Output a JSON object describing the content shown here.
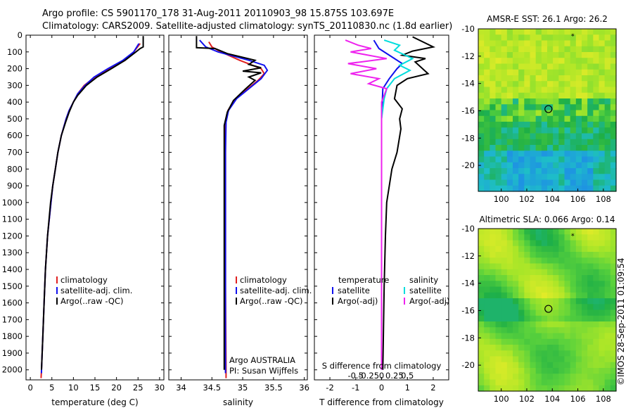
{
  "header": {
    "line1": "Argo profile: CS 5901170_178 31-Aug-2011 20110903_98 15.875S 103.697E",
    "line2": "Climatology: CARS2009. Satellite-adjusted climatology: synTS_20110830.nc (1.8d earlier)"
  },
  "stamp": "©IMOS 28-Sep-2011 01:09:54",
  "colors": {
    "climatology": "#e02020",
    "satellite": "#1010ee",
    "argo": "#000000",
    "salinity_satellite": "#00dddd",
    "salinity_argo": "#ee22ee",
    "sst_warm": "#9ade2a",
    "sst_cool": "#22b04a",
    "sla_high": "#f2a020",
    "sla_low": "#1cbc48"
  },
  "chart_data": [
    {
      "type": "line",
      "id": "temperature",
      "xlabel": "temperature (deg C)",
      "ylabel": "",
      "xlim": [
        -1,
        31
      ],
      "ylim": [
        2060,
        0
      ],
      "xticks": [
        0,
        5,
        10,
        15,
        20,
        25,
        30
      ],
      "yticks": [
        0,
        100,
        200,
        300,
        400,
        500,
        600,
        700,
        800,
        900,
        1000,
        1100,
        1200,
        1300,
        1400,
        1500,
        1600,
        1700,
        1800,
        1900,
        2000
      ],
      "legend": [
        "climatology",
        "satellite-adj. clim.",
        "Argo(..raw -QC)"
      ],
      "series": [
        {
          "name": "climatology",
          "color": "climatology",
          "points": [
            [
              25.5,
              50
            ],
            [
              24,
              100
            ],
            [
              22,
              150
            ],
            [
              18.5,
              200
            ],
            [
              15,
              250
            ],
            [
              12.5,
              300
            ],
            [
              11,
              350
            ],
            [
              10,
              400
            ],
            [
              9,
              450
            ],
            [
              8.3,
              500
            ],
            [
              7.2,
              600
            ],
            [
              6.4,
              700
            ],
            [
              5.8,
              800
            ],
            [
              5.2,
              900
            ],
            [
              4.8,
              1000
            ],
            [
              4,
              1200
            ],
            [
              3.5,
              1400
            ],
            [
              3.2,
              1600
            ],
            [
              2.9,
              1800
            ],
            [
              2.6,
              2000
            ],
            [
              2.5,
              2050
            ]
          ]
        },
        {
          "name": "satellite-adj. clim.",
          "color": "satellite",
          "points": [
            [
              25.2,
              50
            ],
            [
              24,
              100
            ],
            [
              21.5,
              150
            ],
            [
              18,
              200
            ],
            [
              14.8,
              250
            ],
            [
              12.7,
              300
            ],
            [
              11,
              350
            ],
            [
              10,
              400
            ],
            [
              9,
              450
            ],
            [
              8.3,
              500
            ],
            [
              7.2,
              600
            ],
            [
              6.4,
              700
            ],
            [
              5.8,
              800
            ],
            [
              5.2,
              900
            ],
            [
              4.8,
              1000
            ],
            [
              4,
              1200
            ],
            [
              3.5,
              1400
            ],
            [
              3.2,
              1600
            ],
            [
              2.9,
              1800
            ],
            [
              2.6,
              2000
            ],
            [
              2.6,
              2020
            ]
          ]
        },
        {
          "name": "Argo(..raw -QC)",
          "color": "argo",
          "points": [
            [
              26.2,
              5
            ],
            [
              26.2,
              70
            ],
            [
              25.5,
              80
            ],
            [
              24.5,
              100
            ],
            [
              22,
              150
            ],
            [
              18.8,
              200
            ],
            [
              15.5,
              250
            ],
            [
              13,
              300
            ],
            [
              11,
              360
            ],
            [
              10,
              400
            ],
            [
              9,
              460
            ],
            [
              8.2,
              520
            ],
            [
              7.2,
              600
            ],
            [
              6.4,
              700
            ],
            [
              5.8,
              800
            ],
            [
              5.2,
              900
            ],
            [
              4.7,
              1000
            ],
            [
              4,
              1200
            ],
            [
              3.5,
              1400
            ],
            [
              3.2,
              1600
            ],
            [
              2.9,
              1800
            ],
            [
              2.6,
              2000
            ]
          ]
        }
      ]
    },
    {
      "type": "line",
      "id": "salinity",
      "xlabel": "salinity",
      "ylabel": "",
      "xlim": [
        33.8,
        36.05
      ],
      "ylim": [
        2060,
        0
      ],
      "xticks": [
        34,
        34.5,
        35,
        35.5,
        36
      ],
      "legend": [
        "climatology",
        "satellite-adj. clim.",
        "Argo(..raw -QC)"
      ],
      "annotation": [
        "Argo AUSTRALIA",
        "PI: Susan Wijffels"
      ],
      "series": [
        {
          "name": "climatology",
          "color": "climatology",
          "points": [
            [
              34.45,
              40
            ],
            [
              34.5,
              70
            ],
            [
              34.65,
              100
            ],
            [
              34.95,
              150
            ],
            [
              35.3,
              200
            ],
            [
              35.35,
              230
            ],
            [
              35.25,
              270
            ],
            [
              35.05,
              330
            ],
            [
              34.88,
              380
            ],
            [
              34.76,
              450
            ],
            [
              34.72,
              520
            ],
            [
              34.72,
              700
            ],
            [
              34.72,
              1000
            ],
            [
              34.72,
              1500
            ],
            [
              34.73,
              2000
            ],
            [
              34.73,
              2050
            ]
          ]
        },
        {
          "name": "satellite-adj. clim.",
          "color": "satellite",
          "points": [
            [
              34.3,
              30
            ],
            [
              34.4,
              70
            ],
            [
              34.6,
              100
            ],
            [
              35.1,
              150
            ],
            [
              35.35,
              180
            ],
            [
              35.4,
              210
            ],
            [
              35.3,
              260
            ],
            [
              35.1,
              320
            ],
            [
              34.9,
              380
            ],
            [
              34.77,
              450
            ],
            [
              34.73,
              520
            ],
            [
              34.72,
              700
            ],
            [
              34.72,
              1000
            ],
            [
              34.72,
              1500
            ],
            [
              34.72,
              2000
            ],
            [
              34.72,
              2020
            ]
          ]
        },
        {
          "name": "Argo(..raw -QC)",
          "color": "argo",
          "points": [
            [
              34.25,
              5
            ],
            [
              34.25,
              75
            ],
            [
              34.55,
              80
            ],
            [
              34.75,
              110
            ],
            [
              35.2,
              150
            ],
            [
              35.1,
              175
            ],
            [
              35.3,
              195
            ],
            [
              35.0,
              215
            ],
            [
              35.3,
              225
            ],
            [
              35.1,
              250
            ],
            [
              35.2,
              270
            ],
            [
              35.05,
              320
            ],
            [
              34.85,
              390
            ],
            [
              34.75,
              460
            ],
            [
              34.7,
              540
            ],
            [
              34.7,
              700
            ],
            [
              34.7,
              1000
            ],
            [
              34.7,
              1500
            ],
            [
              34.7,
              2000
            ]
          ]
        }
      ]
    },
    {
      "type": "line",
      "id": "differences",
      "xlabel": "T difference from climatology",
      "xlabel2": "S difference from climatology",
      "xlim": [
        -2.6,
        2.6
      ],
      "ylim": [
        2060,
        0
      ],
      "xticks": [
        -2,
        -1,
        0,
        1,
        2
      ],
      "xticks_s": [
        "-0.5",
        "-0.25",
        "0",
        "0.25",
        "0.5"
      ],
      "legend_headers": [
        "temperature",
        "salinity"
      ],
      "legend": [
        "satellite",
        "Argo(-adj)",
        "satellite",
        "Argo(-adj)"
      ],
      "series": [
        {
          "name": "satellite",
          "color": "satellite",
          "points": [
            [
              -0.3,
              30
            ],
            [
              -0.1,
              80
            ],
            [
              0.4,
              130
            ],
            [
              0.8,
              170
            ],
            [
              0.6,
              200
            ],
            [
              0.3,
              260
            ],
            [
              0.05,
              320
            ],
            [
              0,
              500
            ],
            [
              0,
              1000
            ],
            [
              0,
              1500
            ],
            [
              0,
              2000
            ]
          ]
        },
        {
          "name": "Argo(-adj)",
          "color": "argo",
          "points": [
            [
              1.2,
              10
            ],
            [
              2.0,
              70
            ],
            [
              1.2,
              95
            ],
            [
              0.8,
              120
            ],
            [
              1.7,
              140
            ],
            [
              1.3,
              160
            ],
            [
              1.8,
              230
            ],
            [
              1.0,
              260
            ],
            [
              0.6,
              300
            ],
            [
              0.5,
              380
            ],
            [
              0.8,
              440
            ],
            [
              0.7,
              500
            ],
            [
              0.75,
              560
            ],
            [
              0.6,
              700
            ],
            [
              0.4,
              800
            ],
            [
              0.3,
              900
            ],
            [
              0.2,
              1000
            ],
            [
              0.15,
              1200
            ],
            [
              0.1,
              1500
            ],
            [
              0.05,
              2000
            ]
          ]
        },
        {
          "name": "satellite",
          "color": "salinity_satellite",
          "points": [
            [
              0.1,
              30
            ],
            [
              0.7,
              60
            ],
            [
              0.5,
              90
            ],
            [
              1.2,
              140
            ],
            [
              0.7,
              180
            ],
            [
              1.1,
              210
            ],
            [
              0.5,
              260
            ],
            [
              0.2,
              320
            ],
            [
              0.1,
              380
            ],
            [
              0,
              500
            ],
            [
              0,
              1000
            ],
            [
              0,
              1500
            ],
            [
              0,
              2000
            ]
          ]
        },
        {
          "name": "Argo(-adj)",
          "color": "salinity_argo",
          "points": [
            [
              -1.4,
              30
            ],
            [
              -0.9,
              60
            ],
            [
              -0.4,
              80
            ],
            [
              -1.2,
              100
            ],
            [
              0.2,
              140
            ],
            [
              -1.3,
              170
            ],
            [
              -0.2,
              200
            ],
            [
              -1.2,
              230
            ],
            [
              -0.1,
              260
            ],
            [
              -0.5,
              290
            ],
            [
              0.2,
              320
            ],
            [
              0,
              400
            ],
            [
              0,
              500
            ],
            [
              0,
              1000
            ],
            [
              0,
              1500
            ],
            [
              0,
              2000
            ]
          ]
        }
      ]
    },
    {
      "type": "heatmap",
      "id": "sst",
      "title": "AMSR-E SST: 26.1 Argo: 26.2",
      "xlim": [
        98.2,
        109.0
      ],
      "ylim": [
        -21.9,
        -10.0
      ],
      "xticks": [
        100,
        102,
        104,
        106,
        108
      ],
      "yticks": [
        -10,
        -12,
        -14,
        -16,
        -18,
        -20
      ],
      "argo_position": [
        103.697,
        -15.875
      ],
      "marker_position": [
        105.6,
        -10.5
      ]
    },
    {
      "type": "heatmap",
      "id": "sla",
      "title": "Altimetric SLA: 0.066 Argo: 0.14",
      "xlim": [
        98.2,
        109.0
      ],
      "ylim": [
        -21.9,
        -10.0
      ],
      "xticks": [
        100,
        102,
        104,
        106,
        108
      ],
      "yticks": [
        -10,
        -12,
        -14,
        -16,
        -18,
        -20
      ],
      "argo_position": [
        103.697,
        -15.875
      ],
      "marker_position": [
        105.6,
        -10.5
      ]
    }
  ]
}
